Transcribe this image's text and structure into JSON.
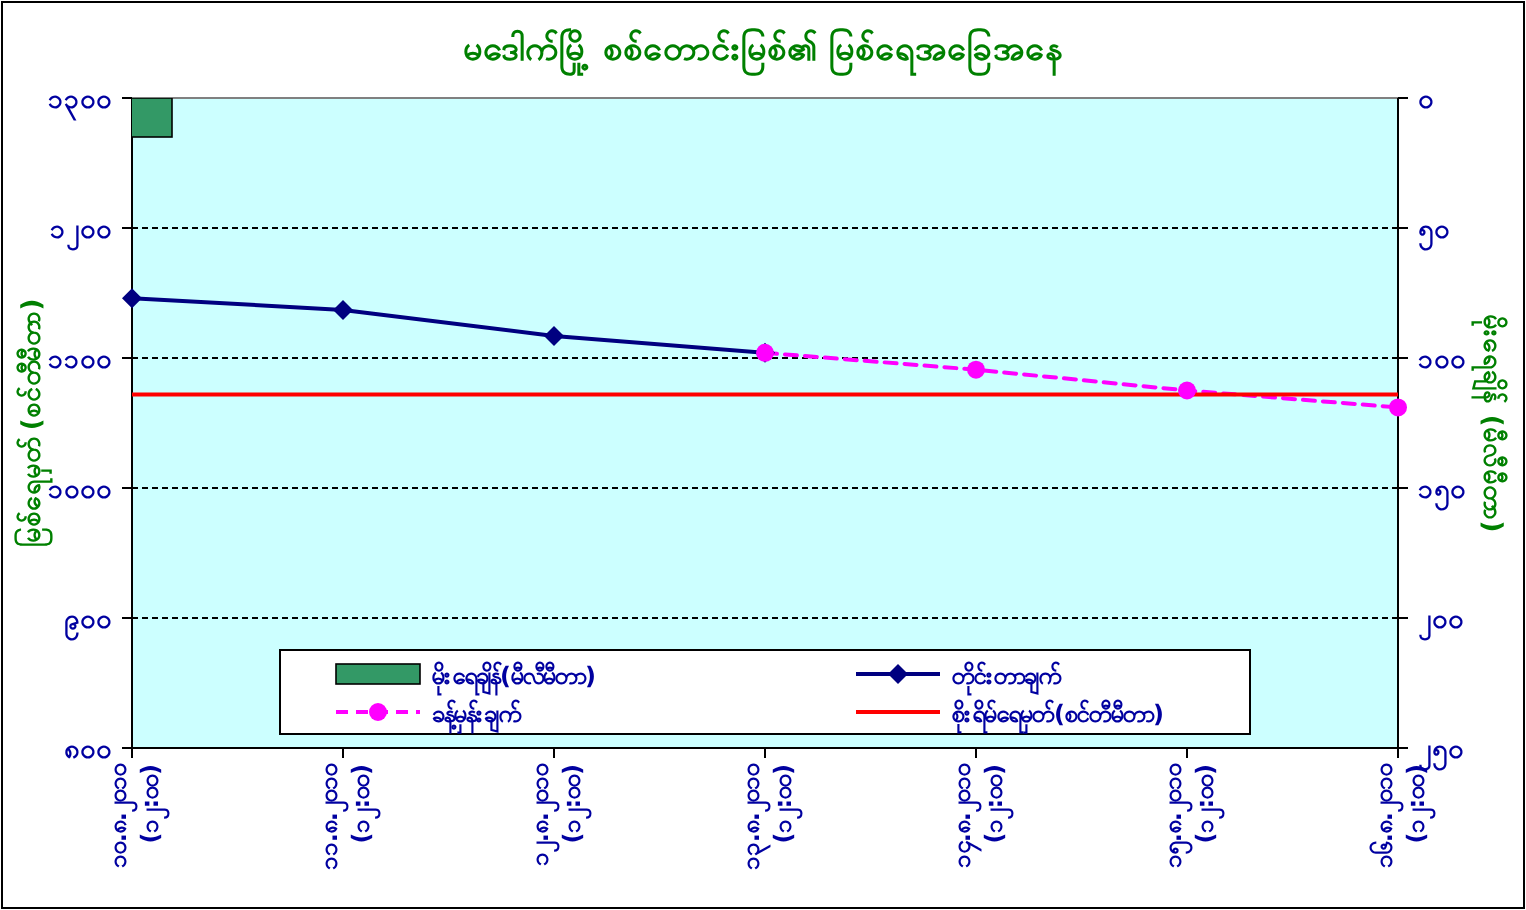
{
  "chart_data": {
    "type": "line",
    "title": "မဒေါက်မြို့ စစ်တောင်းမြစ်၏ မြစ်ရေအခြေအနေ",
    "ylabel": "မြစ်ရေမှတ် (စင်တီမီတာ)",
    "y2label": "မိုးရေချိန် (မီလီမီတာ)",
    "categories": [
      "၁၀.၈.၂၀၁၀ (၁၂:၀၀)",
      "၁၁.၈.၂၀၁၀ (၁၂:၀၀)",
      "၁၂.၈.၂၀၁၀ (၁၂:၀၀)",
      "၁၃.၈.၂၀၁၀ (၁၂:၀၀)",
      "၁၄.၈.၂၀၁၀ (၁၂:၀၀)",
      "၁၅.၈.၂၀၁၀ (၁၂:၀၀)",
      "၁၆.၈.၂၀၁၀ (၁၂:၀၀)"
    ],
    "ylim": [
      800,
      1300
    ],
    "yticks": [
      {
        "value": 800,
        "label": "၈၀၀"
      },
      {
        "value": 900,
        "label": "၉၀၀"
      },
      {
        "value": 1000,
        "label": "၁၀၀၀"
      },
      {
        "value": 1100,
        "label": "၁၁၀၀"
      },
      {
        "value": 1200,
        "label": "၁၂၀၀"
      },
      {
        "value": 1300,
        "label": "၁၃၀၀"
      }
    ],
    "y2lim": [
      250,
      0
    ],
    "y2ticks": [
      {
        "value": 0,
        "label": "၀"
      },
      {
        "value": 50,
        "label": "၅၀"
      },
      {
        "value": 100,
        "label": "၁၀၀"
      },
      {
        "value": 150,
        "label": "၁၅၀"
      },
      {
        "value": 200,
        "label": "၂၀၀"
      },
      {
        "value": 250,
        "label": "၂၅၀"
      }
    ],
    "grid": "y",
    "legend": "bottom",
    "series": [
      {
        "name": "မိုးရေချိန်(မီလီမီတာ)",
        "type": "bar",
        "axis": "y2",
        "color": "#339966",
        "values": [
          15,
          null,
          null,
          null,
          null,
          null,
          null
        ]
      },
      {
        "name": "တိုင်းတာချက်",
        "color": "#000080",
        "marker": "diamond",
        "line_style": "solid",
        "values": [
          1146,
          1137,
          1117,
          1104,
          null,
          null,
          null
        ]
      },
      {
        "name": "ခန့်မှန်းချက်",
        "color": "#ff00ff",
        "marker": "circle",
        "line_style": "dashed",
        "values": [
          null,
          null,
          null,
          1104,
          1091,
          1075,
          1062
        ]
      },
      {
        "name": "စိုးရိမ်ရေမှတ်(စင်တီမီတာ)",
        "color": "#ff0000",
        "marker": "none",
        "line_style": "solid",
        "values": [
          1072,
          1072,
          1072,
          1072,
          1072,
          1072,
          1072
        ]
      }
    ]
  }
}
